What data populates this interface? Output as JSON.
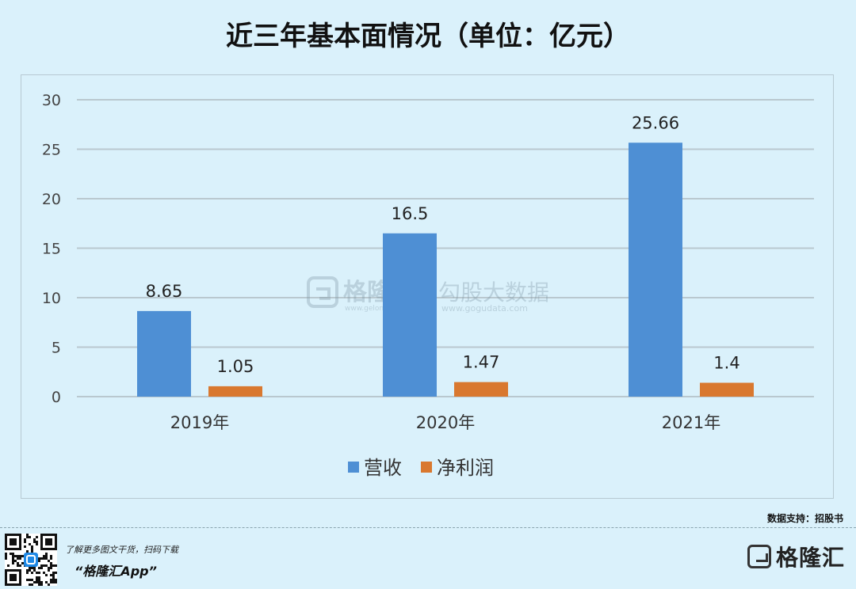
{
  "title": "近三年基本面情况（单位：亿元）",
  "chart_data": {
    "type": "bar",
    "categories": [
      "2019年",
      "2020年",
      "2021年"
    ],
    "series": [
      {
        "name": "营收",
        "values": [
          8.65,
          16.5,
          25.66
        ],
        "color": "#4e8fd4"
      },
      {
        "name": "净利润",
        "values": [
          1.05,
          1.47,
          1.4
        ],
        "color": "#d9782f"
      }
    ],
    "data_labels": [
      [
        "8.65",
        "16.5",
        "25.66"
      ],
      [
        "1.05",
        "1.47",
        "1.4"
      ]
    ],
    "ylim": [
      0,
      30
    ],
    "yticks": [
      "0",
      "5",
      "10",
      "15",
      "20",
      "25",
      "30"
    ],
    "grid": true,
    "legend": "bottom-center"
  },
  "watermark": {
    "brand": "格隆汇",
    "site": "www.gelonghui.com",
    "partner": "勾股大数据",
    "partner_site": "www.gogudata.com"
  },
  "source": "数据支持：招股书",
  "footer": {
    "tip": "了解更多图文干货，扫码下载",
    "app": "“格隆汇App”",
    "logo": "格隆汇"
  }
}
